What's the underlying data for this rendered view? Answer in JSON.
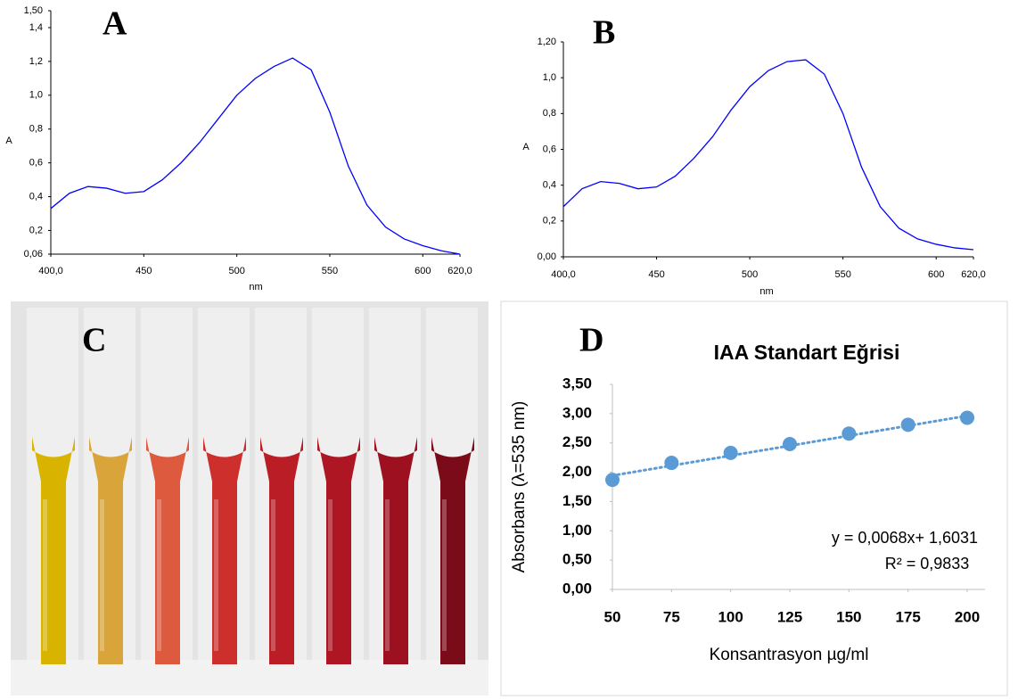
{
  "chart_data": [
    {
      "type": "line",
      "label": "A",
      "xlabel": "nm",
      "ylabel": "A",
      "color": "#0000ff",
      "x": [
        400,
        410,
        420,
        430,
        440,
        450,
        460,
        470,
        480,
        490,
        500,
        510,
        520,
        530,
        540,
        550,
        560,
        570,
        580,
        590,
        600,
        610,
        620
      ],
      "values": [
        0.33,
        0.42,
        0.46,
        0.45,
        0.42,
        0.43,
        0.5,
        0.6,
        0.72,
        0.86,
        1.0,
        1.1,
        1.17,
        1.22,
        1.15,
        0.9,
        0.58,
        0.35,
        0.22,
        0.15,
        0.11,
        0.08,
        0.06
      ],
      "xlim": [
        400,
        620
      ],
      "ylim": [
        0.06,
        1.5
      ],
      "xticks": [
        {
          "value": 400,
          "label": "400,0"
        },
        450,
        500,
        550,
        600,
        {
          "value": 620,
          "label": "620,0"
        }
      ],
      "yticks": [
        {
          "value": 0.06,
          "label": "0,06"
        },
        {
          "value": 0.2,
          "label": "0,2"
        },
        {
          "value": 0.4,
          "label": "0,4"
        },
        {
          "value": 0.6,
          "label": "0,6"
        },
        {
          "value": 0.8,
          "label": "0,8"
        },
        {
          "value": 1.0,
          "label": "1,0"
        },
        {
          "value": 1.2,
          "label": "1,2"
        },
        {
          "value": 1.4,
          "label": "1,4"
        },
        {
          "value": 1.5,
          "label": "1,50"
        }
      ]
    },
    {
      "type": "line",
      "label": "B",
      "xlabel": "nm",
      "ylabel": "A",
      "color": "#0000ff",
      "x": [
        400,
        410,
        420,
        430,
        440,
        450,
        460,
        470,
        480,
        490,
        500,
        510,
        520,
        530,
        540,
        550,
        560,
        570,
        580,
        590,
        600,
        610,
        620
      ],
      "values": [
        0.28,
        0.38,
        0.42,
        0.41,
        0.38,
        0.39,
        0.45,
        0.55,
        0.67,
        0.82,
        0.95,
        1.04,
        1.09,
        1.1,
        1.02,
        0.8,
        0.5,
        0.28,
        0.16,
        0.1,
        0.07,
        0.05,
        0.04
      ],
      "xlim": [
        400,
        620
      ],
      "ylim": [
        0,
        1.2
      ],
      "xticks": [
        {
          "value": 400,
          "label": "400,0"
        },
        450,
        500,
        550,
        600,
        {
          "value": 620,
          "label": "620,0"
        }
      ],
      "yticks": [
        {
          "value": 0,
          "label": "0,00"
        },
        {
          "value": 0.2,
          "label": "0,2"
        },
        {
          "value": 0.4,
          "label": "0,4"
        },
        {
          "value": 0.6,
          "label": "0,6"
        },
        {
          "value": 0.8,
          "label": "0,8"
        },
        {
          "value": 1.0,
          "label": "1,0"
        },
        {
          "value": 1.2,
          "label": "1,20"
        }
      ]
    },
    {
      "type": "scatter",
      "label": "D",
      "title": "IAA Standart Eğrisi",
      "xlabel": "Konsantrasyon µg/ml",
      "ylabel": "Absorbans (λ=535 nm)",
      "color": "#5b9bd5",
      "x": [
        50,
        75,
        100,
        125,
        150,
        175,
        200
      ],
      "values": [
        1.87,
        2.16,
        2.33,
        2.48,
        2.66,
        2.81,
        2.93
      ],
      "xlim": [
        50,
        200
      ],
      "ylim": [
        0,
        3.5
      ],
      "xticks": [
        50,
        75,
        100,
        125,
        150,
        175,
        200
      ],
      "yticks": [
        {
          "value": 0,
          "label": "0,00"
        },
        {
          "value": 0.5,
          "label": "0,50"
        },
        {
          "value": 1.0,
          "label": "1,00"
        },
        {
          "value": 1.5,
          "label": "1,50"
        },
        {
          "value": 2.0,
          "label": "2,00"
        },
        {
          "value": 2.5,
          "label": "2,50"
        },
        {
          "value": 3.0,
          "label": "3,00"
        },
        {
          "value": 3.5,
          "label": "3,50"
        }
      ],
      "trendline": {
        "slope": 0.0068,
        "intercept": 1.6031
      },
      "annotations": [
        "y = 0,0068x+ 1,6031",
        "R² = 0,9833"
      ]
    }
  ],
  "photo": {
    "label": "C"
  }
}
